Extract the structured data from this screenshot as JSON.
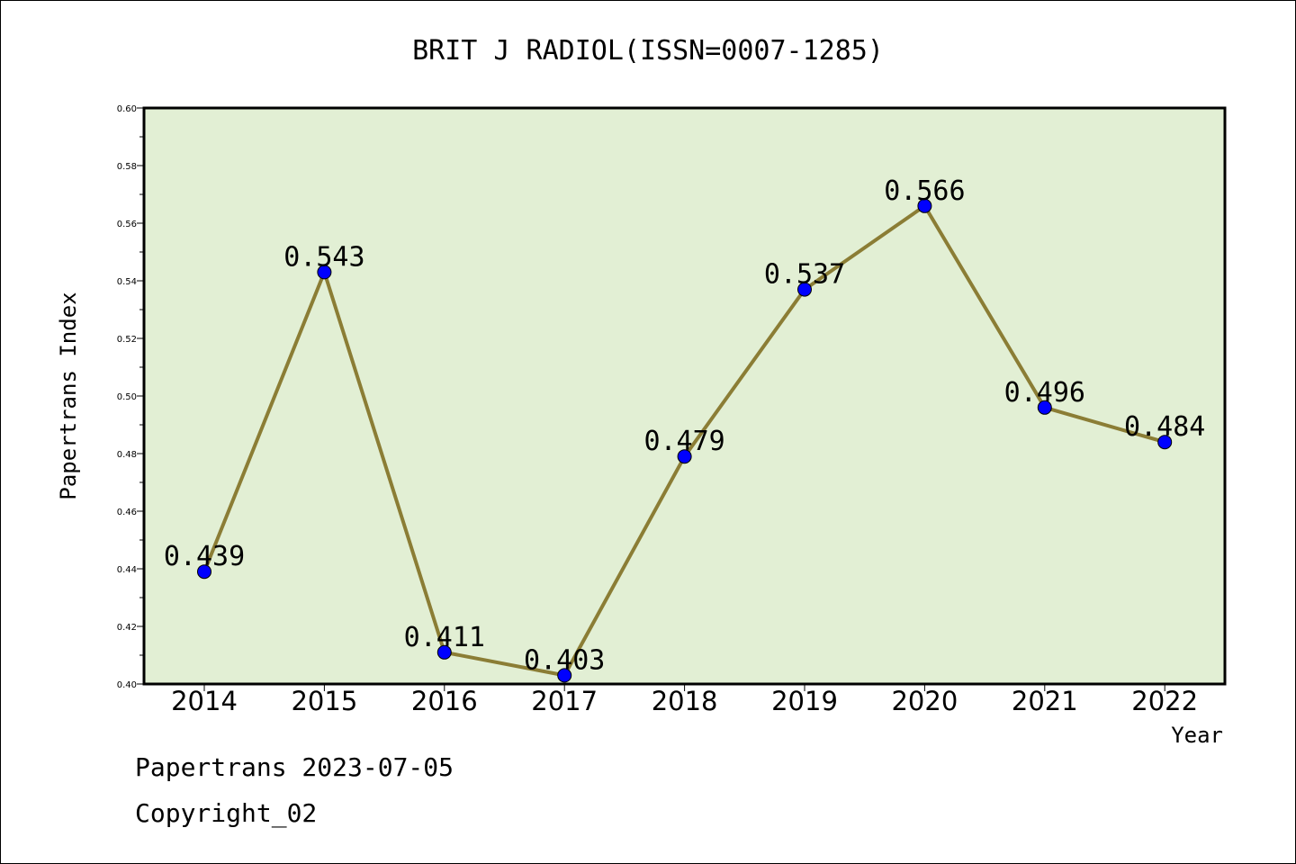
{
  "chart_data": {
    "type": "line",
    "title": "BRIT J RADIOL(ISSN=0007-1285)",
    "xlabel": "Year",
    "ylabel": "Papertrans Index",
    "categories": [
      "2014",
      "2015",
      "2016",
      "2017",
      "2018",
      "2019",
      "2020",
      "2021",
      "2022"
    ],
    "values": [
      0.439,
      0.543,
      0.411,
      0.403,
      0.479,
      0.537,
      0.566,
      0.496,
      0.484
    ],
    "data_labels": [
      "0.439",
      "0.543",
      "0.411",
      "0.403",
      "0.479",
      "0.537",
      "0.566",
      "0.496",
      "0.484"
    ],
    "ylim": [
      0.4,
      0.6
    ],
    "yticks": [
      "0.40",
      "0.42",
      "0.44",
      "0.46",
      "0.48",
      "0.50",
      "0.52",
      "0.54",
      "0.56",
      "0.58",
      "0.60"
    ],
    "grid": false,
    "legend": "none",
    "colors": {
      "plot_background": "#e2efd4",
      "line": "#8b7d35",
      "marker": "#0000ff"
    }
  },
  "footer": {
    "date_line": "Papertrans 2023-07-05",
    "copyright": "Copyright_02"
  }
}
